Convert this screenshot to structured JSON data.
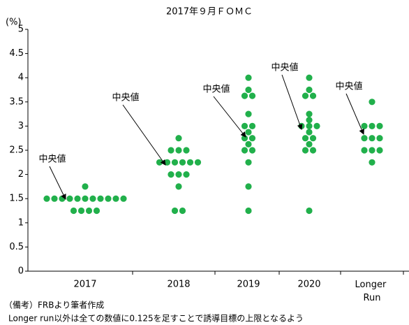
{
  "chart_data": {
    "type": "dot",
    "title": "2017年９月ＦＯＭＣ",
    "y_unit": "(%)",
    "categories": [
      "2017",
      "2018",
      "2019",
      "2020",
      "Longer Run"
    ],
    "color": "#21b04b",
    "dots": [
      [
        1.75,
        1.5,
        1.5,
        1.5,
        1.5,
        1.5,
        1.5,
        1.5,
        1.5,
        1.5,
        1.5,
        1.5,
        1.25,
        1.25,
        1.25,
        1.25
      ],
      [
        2.75,
        2.5,
        2.5,
        2.5,
        2.25,
        2.25,
        2.25,
        2.25,
        2.25,
        2.25,
        2,
        2,
        2,
        1.75,
        1.25,
        1.25
      ],
      [
        4,
        3.75,
        3.625,
        3.625,
        3.25,
        3,
        3,
        2.875,
        2.75,
        2.75,
        2.625,
        2.5,
        2.5,
        2.25,
        1.75,
        1.25
      ],
      [
        4,
        3.75,
        3.625,
        3.625,
        3.25,
        3.125,
        3,
        3,
        3,
        2.875,
        2.75,
        2.75,
        2.625,
        2.5,
        2.5,
        1.25
      ],
      [
        3.5,
        3,
        3,
        3,
        2.75,
        2.75,
        2.75,
        2.5,
        2.5,
        2.5,
        2.25
      ]
    ],
    "ylim": [
      0,
      5
    ],
    "yticks": [
      0,
      0.5,
      1,
      1.5,
      2,
      2.5,
      3,
      3.5,
      4,
      4.5,
      5
    ],
    "grid": false,
    "annotations": [
      "中央値",
      "中央値",
      "中央値",
      "中央値",
      "中央値"
    ],
    "notes": [
      "（備考）FRBより筆者作成",
      "Longer run以外は全ての数値に0.125を足すことで誘導目標の上限となるよう"
    ]
  }
}
